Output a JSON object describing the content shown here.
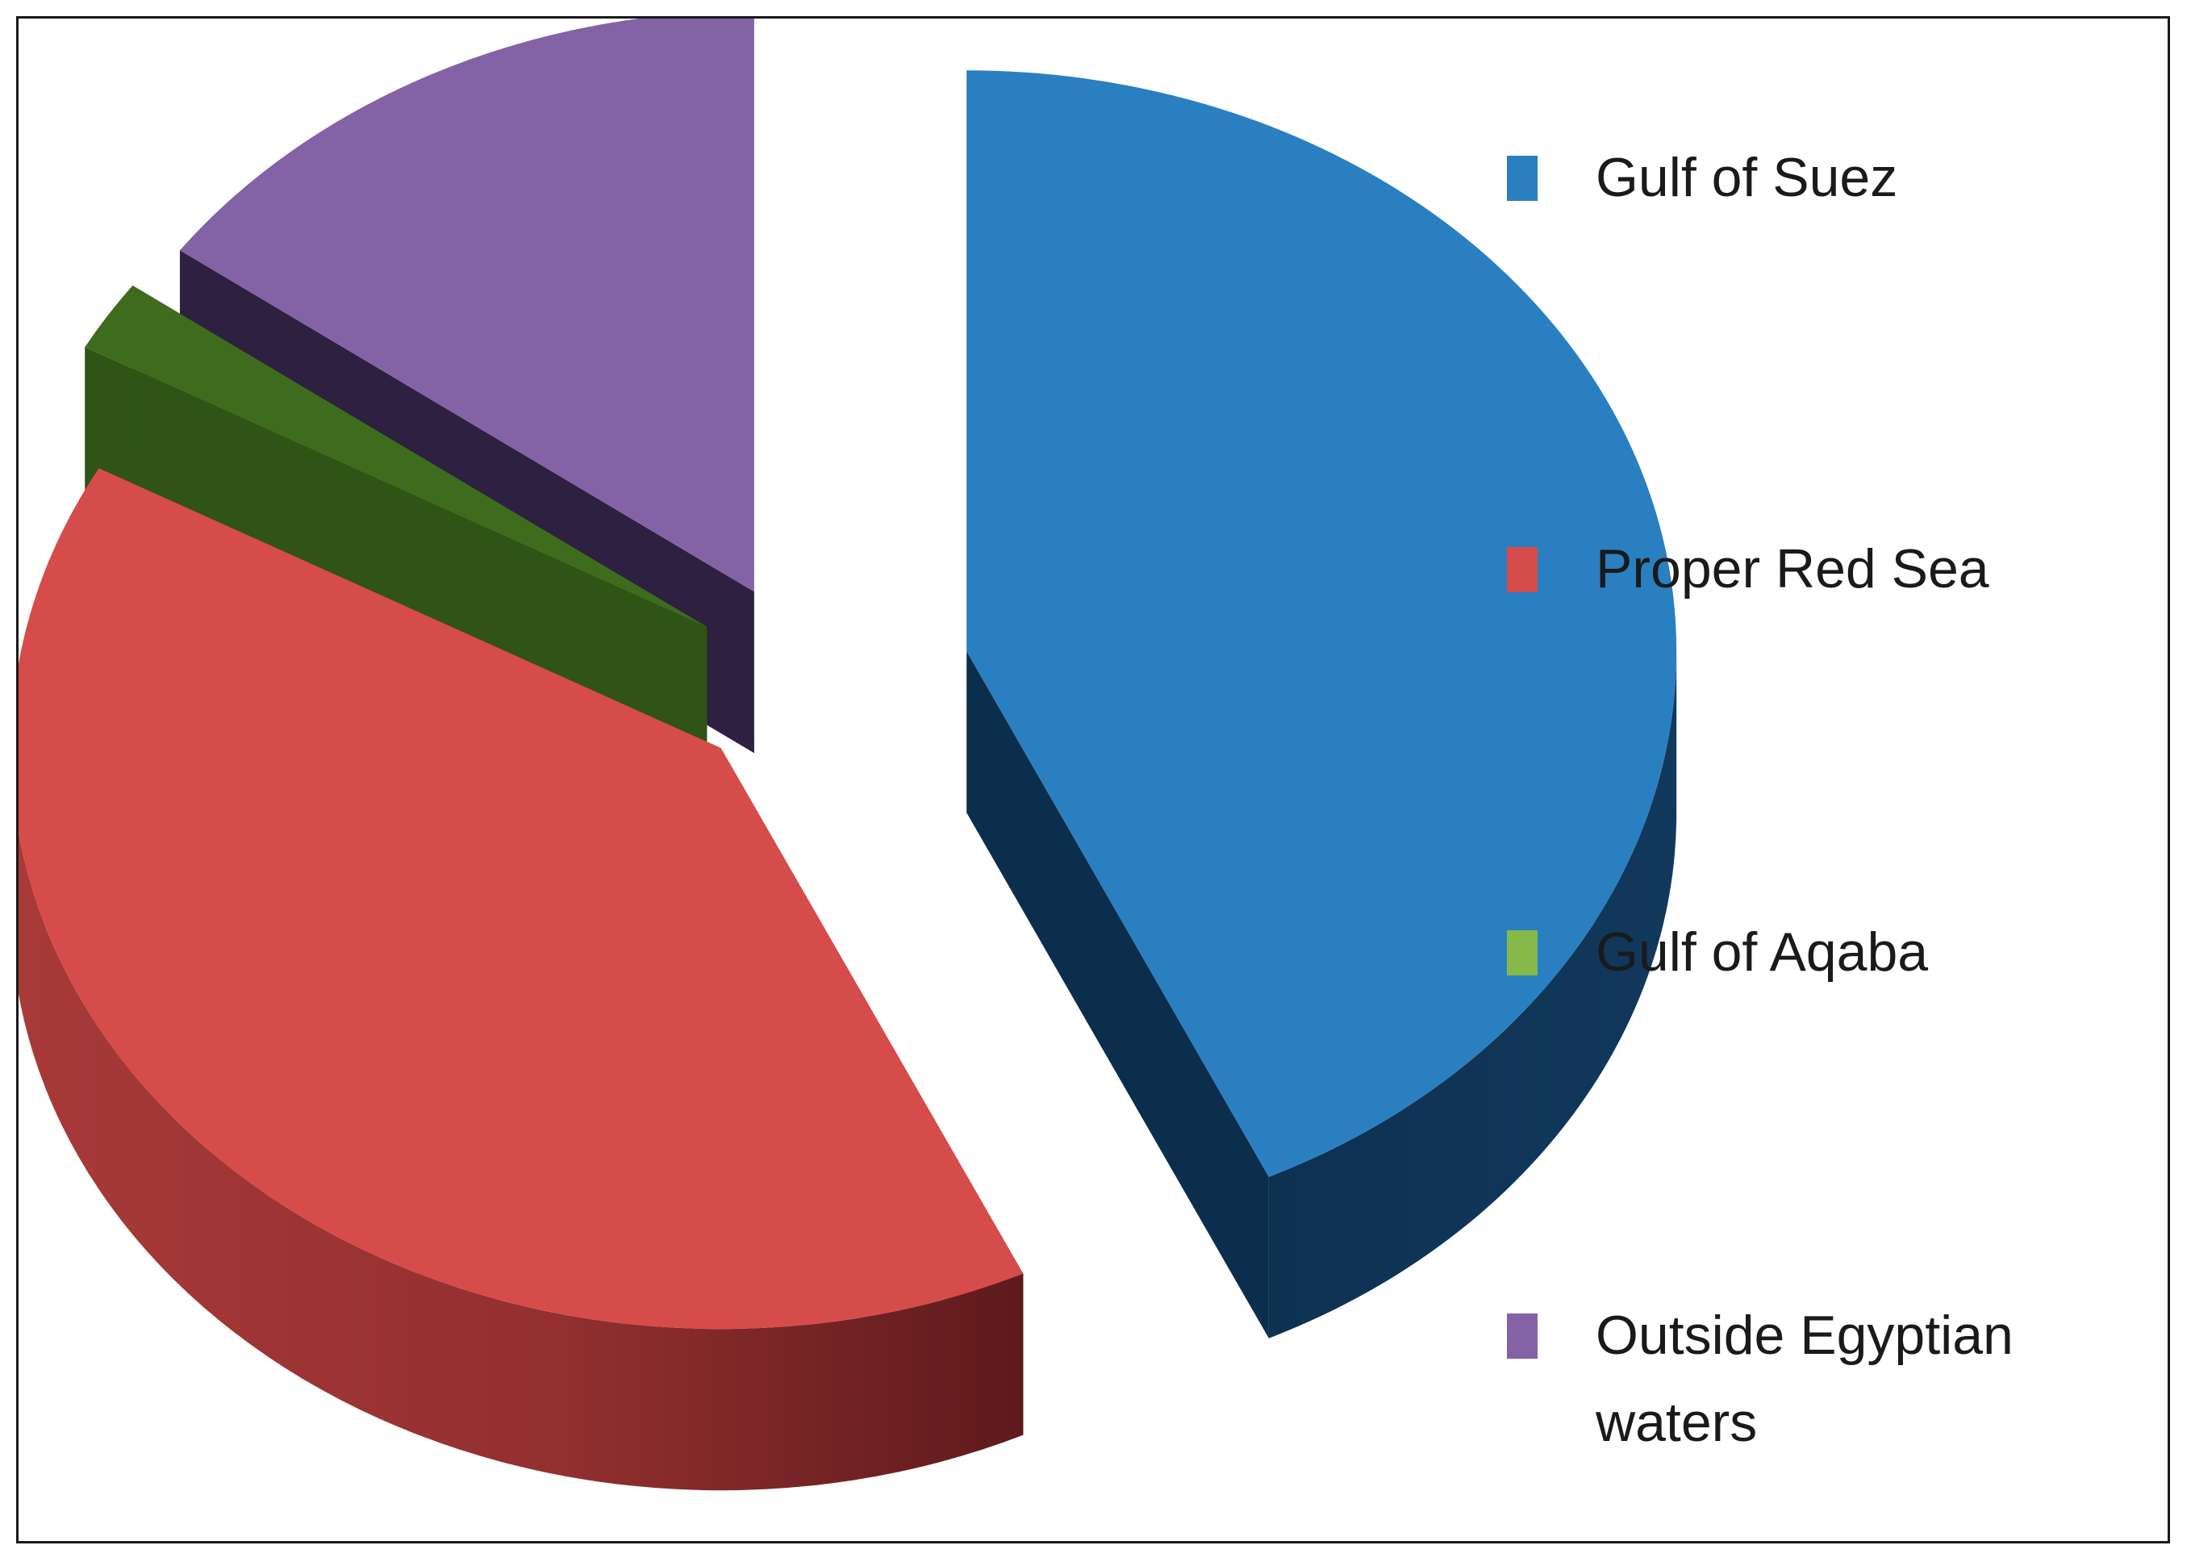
{
  "chart_data": {
    "type": "pie",
    "style": "3d-exploded",
    "title": "",
    "categories": [
      "Gulf of Suez",
      "Proper Red Sea",
      "Gulf of Aqaba",
      "Outside Egyptian waters"
    ],
    "values": [
      43,
      40,
      2,
      15
    ],
    "colors": [
      "#2a7fc0",
      "#d64c4a",
      "#3f6c1c",
      "#8462a6"
    ],
    "legend": {
      "placement": "right",
      "entries": [
        {
          "label": "Gulf of Suez",
          "lines": [
            "Gulf of Suez"
          ],
          "color": "#2a7fc0"
        },
        {
          "label": "Proper Red Sea",
          "lines": [
            "Proper Red Sea"
          ],
          "color": "#d64c4a"
        },
        {
          "label": "Gulf of Aqaba",
          "lines": [
            "Gulf of Aqaba"
          ],
          "color": "#86b84a"
        },
        {
          "label": "Outside Egyptian waters",
          "lines": [
            "Outside Egyptian",
            "waters"
          ],
          "color": "#8462a6"
        }
      ]
    }
  }
}
